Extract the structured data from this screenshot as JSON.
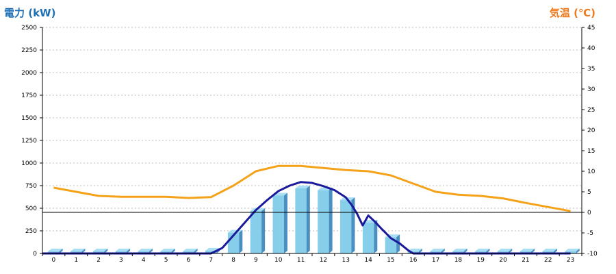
{
  "chart_data": {
    "type": "bar+line",
    "left_title": "電力 (kW)",
    "right_title": "気温 (℃)",
    "categories": [
      "0",
      "1",
      "2",
      "3",
      "4",
      "5",
      "6",
      "7",
      "8",
      "9",
      "10",
      "11",
      "12",
      "13",
      "14",
      "15",
      "16",
      "17",
      "18",
      "19",
      "20",
      "21",
      "22",
      "23"
    ],
    "y_left": {
      "min": 0,
      "max": 2500,
      "ticks": [
        "0",
        "250",
        "500",
        "750",
        "1000",
        "1250",
        "1500",
        "1750",
        "2000",
        "2250",
        "2500"
      ]
    },
    "y_right": {
      "min": -10,
      "max": 45,
      "ticks": [
        "-10",
        "-5",
        "0",
        "5",
        "10",
        "15",
        "20",
        "25",
        "30",
        "35",
        "40",
        "45"
      ]
    },
    "grid": true,
    "bars": {
      "axis": "left",
      "color": "#87ceeb",
      "values": [
        0,
        0,
        0,
        0,
        0,
        0,
        0,
        30,
        230,
        470,
        640,
        720,
        700,
        590,
        340,
        180,
        20,
        0,
        0,
        0,
        0,
        0,
        0,
        0
      ]
    },
    "power_line": {
      "axis": "left",
      "color": "#1a1a9a",
      "points": [
        [
          7,
          0
        ],
        [
          7.5,
          60
        ],
        [
          8,
          200
        ],
        [
          8.5,
          340
        ],
        [
          9,
          480
        ],
        [
          9.5,
          590
        ],
        [
          10,
          690
        ],
        [
          10.5,
          750
        ],
        [
          11,
          790
        ],
        [
          11.5,
          780
        ],
        [
          12,
          745
        ],
        [
          12.5,
          700
        ],
        [
          13,
          620
        ],
        [
          13.25,
          540
        ],
        [
          13.5,
          440
        ],
        [
          13.75,
          310
        ],
        [
          14,
          420
        ],
        [
          14.3,
          350
        ],
        [
          14.6,
          270
        ],
        [
          15,
          170
        ],
        [
          15.4,
          110
        ],
        [
          15.8,
          30
        ],
        [
          16,
          0
        ],
        [
          23,
          0
        ]
      ]
    },
    "temperature": {
      "axis": "right",
      "color": "#f5a21b",
      "values": [
        6,
        5,
        4,
        3.8,
        3.8,
        3.8,
        3.5,
        3.7,
        6.5,
        10,
        11.3,
        11.3,
        10.8,
        10.3,
        10,
        9,
        7,
        5,
        4.3,
        4,
        3.4,
        2.3,
        1.3,
        0.3
      ]
    }
  }
}
